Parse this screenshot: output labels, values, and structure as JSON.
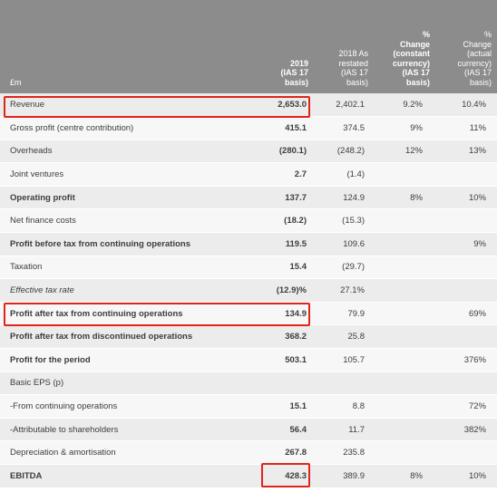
{
  "header": {
    "label": "£m",
    "col_2019": [
      "2019",
      "(IAS 17",
      "basis)"
    ],
    "col_2018": [
      "2018 As",
      "restated",
      "(IAS 17",
      "basis)"
    ],
    "col_const": [
      "%",
      "Change",
      "(constant",
      "currency)",
      "(IAS 17",
      "basis)"
    ],
    "col_actual": [
      "%",
      "Change",
      "(actual",
      "currency)",
      "(IAS 17",
      "basis)"
    ]
  },
  "rows": [
    {
      "label": "Revenue",
      "v2019": "2,653.0",
      "v2018": "2,402.1",
      "const": "9.2%",
      "actual": "10.4%"
    },
    {
      "label": "Gross profit (centre contribution)",
      "v2019": "415.1",
      "v2018": "374.5",
      "const": "9%",
      "actual": "11%"
    },
    {
      "label": "Overheads",
      "v2019": "(280.1)",
      "v2018": "(248.2)",
      "const": "12%",
      "actual": "13%"
    },
    {
      "label": "Joint ventures",
      "v2019": "2.7",
      "v2018": "(1.4)",
      "const": "",
      "actual": ""
    },
    {
      "label": "Operating profit",
      "v2019": "137.7",
      "v2018": "124.9",
      "const": "8%",
      "actual": "10%"
    },
    {
      "label": "Net finance costs",
      "v2019": "(18.2)",
      "v2018": "(15.3)",
      "const": "",
      "actual": ""
    },
    {
      "label": "Profit before tax from continuing operations",
      "v2019": "119.5",
      "v2018": "109.6",
      "const": "",
      "actual": "9%"
    },
    {
      "label": "Taxation",
      "v2019": "15.4",
      "v2018": "(29.7)",
      "const": "",
      "actual": ""
    },
    {
      "label": "Effective tax rate",
      "v2019": "(12.9)%",
      "v2018": "27.1%",
      "const": "",
      "actual": ""
    },
    {
      "label": "Profit after tax from continuing operations",
      "v2019": "134.9",
      "v2018": "79.9",
      "const": "",
      "actual": "69%"
    },
    {
      "label": "Profit after tax from discontinued operations",
      "v2019": "368.2",
      "v2018": "25.8",
      "const": "",
      "actual": ""
    },
    {
      "label": "Profit for the period",
      "v2019": "503.1",
      "v2018": "105.7",
      "const": "",
      "actual": "376%"
    },
    {
      "label": "Basic EPS (p)",
      "v2019": "",
      "v2018": "",
      "const": "",
      "actual": ""
    },
    {
      "label": "-From continuing operations",
      "v2019": "15.1",
      "v2018": "8.8",
      "const": "",
      "actual": "72%"
    },
    {
      "label": "-Attributable to shareholders",
      "v2019": "56.4",
      "v2018": "11.7",
      "const": "",
      "actual": "382%"
    },
    {
      "label": "Depreciation & amortisation",
      "v2019": "267.8",
      "v2018": "235.8",
      "const": "",
      "actual": ""
    },
    {
      "label": "EBITDA",
      "v2019": "428.3",
      "v2018": "389.9",
      "const": "8%",
      "actual": "10%"
    }
  ],
  "highlight_color": "#e0241b"
}
